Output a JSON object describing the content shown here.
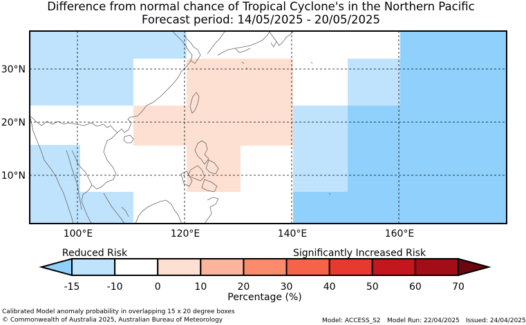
{
  "title_line1": "Difference from normal chance of Tropical Cyclone's in the Northern Pacific",
  "title_line2": "Forecast period: 14/05/2025 - 20/05/2025",
  "map": {
    "lat_labels": [
      "30°N",
      "20°N",
      "10°N"
    ],
    "lon_labels": [
      "100°E",
      "120°E",
      "140°E",
      "160°E"
    ]
  },
  "colorbar": {
    "reduced_label": "Reduced Risk",
    "increased_label": "Significantly Increased Risk",
    "tick_labels": [
      "-15",
      "-10",
      "0",
      "10",
      "20",
      "30",
      "40",
      "50",
      "60",
      "70"
    ],
    "axis_label": "Percentage (%)",
    "colors": {
      "under": "#8fd0fc",
      "bins": [
        "#bfe3fd",
        "#ffffff",
        "#fee0d3",
        "#fcb49c",
        "#fb8b6d",
        "#f56448",
        "#e7392e",
        "#c4161d",
        "#a10e18"
      ],
      "over": "#6b0710"
    }
  },
  "footer": {
    "method": "Calibrated Model anomaly probability in overlapping 15 x 20 degree boxes",
    "copyright": "© Commonwealth of Australia 2025, Australian Bureau of Meteorology",
    "model": "Model: ACCESS_S2",
    "model_run": "Model Run: 22/04/2025",
    "issued": "Issued: 24/04/2025"
  }
}
